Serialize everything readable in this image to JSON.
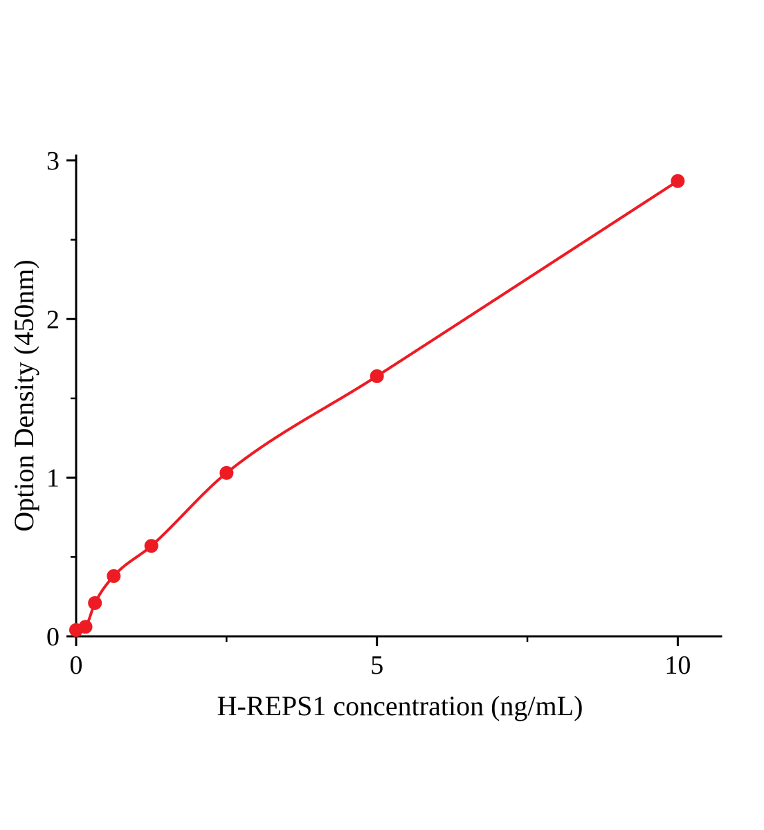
{
  "chart_data": {
    "type": "scatter",
    "title": "",
    "xlabel": "H-REPS1 concentration (ng/mL)",
    "ylabel": "Option Density (450nm)",
    "x": [
      0,
      0.156,
      0.3125,
      0.625,
      1.25,
      2.5,
      5,
      10
    ],
    "y": [
      0.04,
      0.06,
      0.21,
      0.38,
      0.57,
      1.03,
      1.64,
      2.87
    ],
    "fit": "smooth-curve-through-points",
    "xlim": [
      0,
      10.72
    ],
    "ylim": [
      0,
      3.03
    ],
    "x_major_ticks": [
      0,
      5,
      10
    ],
    "x_minor_ticks": [
      2.5,
      7.5
    ],
    "y_major_ticks": [
      0,
      1,
      2,
      3
    ],
    "y_minor_ticks": [
      0.5,
      1.5,
      2.5
    ],
    "grid": false,
    "legend": false,
    "marker": "circle",
    "curve_color": "#ed1c24",
    "marker_color": "#ed1c24",
    "axis_color": "#000000",
    "background_color": "#ffffff"
  }
}
